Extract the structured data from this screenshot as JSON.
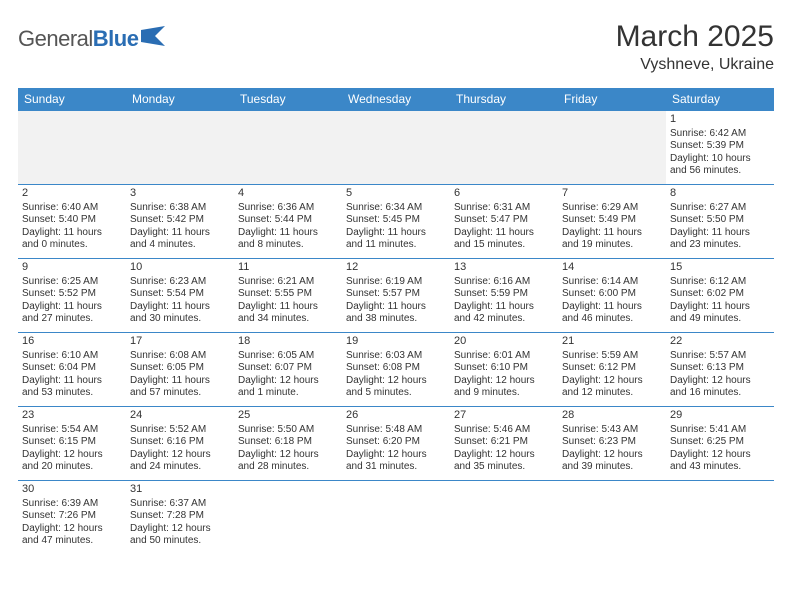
{
  "logo": {
    "part1": "General",
    "part2": "Blue"
  },
  "title": "March 2025",
  "location": "Vyshneve, Ukraine",
  "colors": {
    "header_bg": "#3b87c8",
    "header_text": "#ffffff",
    "border": "#3b87c8",
    "empty_bg": "#f2f2f2",
    "logo_gray": "#555555",
    "logo_blue": "#2a6db3"
  },
  "day_headers": [
    "Sunday",
    "Monday",
    "Tuesday",
    "Wednesday",
    "Thursday",
    "Friday",
    "Saturday"
  ],
  "weeks": [
    [
      null,
      null,
      null,
      null,
      null,
      null,
      {
        "n": "1",
        "sr": "Sunrise: 6:42 AM",
        "ss": "Sunset: 5:39 PM",
        "d1": "Daylight: 10 hours",
        "d2": "and 56 minutes."
      }
    ],
    [
      {
        "n": "2",
        "sr": "Sunrise: 6:40 AM",
        "ss": "Sunset: 5:40 PM",
        "d1": "Daylight: 11 hours",
        "d2": "and 0 minutes."
      },
      {
        "n": "3",
        "sr": "Sunrise: 6:38 AM",
        "ss": "Sunset: 5:42 PM",
        "d1": "Daylight: 11 hours",
        "d2": "and 4 minutes."
      },
      {
        "n": "4",
        "sr": "Sunrise: 6:36 AM",
        "ss": "Sunset: 5:44 PM",
        "d1": "Daylight: 11 hours",
        "d2": "and 8 minutes."
      },
      {
        "n": "5",
        "sr": "Sunrise: 6:34 AM",
        "ss": "Sunset: 5:45 PM",
        "d1": "Daylight: 11 hours",
        "d2": "and 11 minutes."
      },
      {
        "n": "6",
        "sr": "Sunrise: 6:31 AM",
        "ss": "Sunset: 5:47 PM",
        "d1": "Daylight: 11 hours",
        "d2": "and 15 minutes."
      },
      {
        "n": "7",
        "sr": "Sunrise: 6:29 AM",
        "ss": "Sunset: 5:49 PM",
        "d1": "Daylight: 11 hours",
        "d2": "and 19 minutes."
      },
      {
        "n": "8",
        "sr": "Sunrise: 6:27 AM",
        "ss": "Sunset: 5:50 PM",
        "d1": "Daylight: 11 hours",
        "d2": "and 23 minutes."
      }
    ],
    [
      {
        "n": "9",
        "sr": "Sunrise: 6:25 AM",
        "ss": "Sunset: 5:52 PM",
        "d1": "Daylight: 11 hours",
        "d2": "and 27 minutes."
      },
      {
        "n": "10",
        "sr": "Sunrise: 6:23 AM",
        "ss": "Sunset: 5:54 PM",
        "d1": "Daylight: 11 hours",
        "d2": "and 30 minutes."
      },
      {
        "n": "11",
        "sr": "Sunrise: 6:21 AM",
        "ss": "Sunset: 5:55 PM",
        "d1": "Daylight: 11 hours",
        "d2": "and 34 minutes."
      },
      {
        "n": "12",
        "sr": "Sunrise: 6:19 AM",
        "ss": "Sunset: 5:57 PM",
        "d1": "Daylight: 11 hours",
        "d2": "and 38 minutes."
      },
      {
        "n": "13",
        "sr": "Sunrise: 6:16 AM",
        "ss": "Sunset: 5:59 PM",
        "d1": "Daylight: 11 hours",
        "d2": "and 42 minutes."
      },
      {
        "n": "14",
        "sr": "Sunrise: 6:14 AM",
        "ss": "Sunset: 6:00 PM",
        "d1": "Daylight: 11 hours",
        "d2": "and 46 minutes."
      },
      {
        "n": "15",
        "sr": "Sunrise: 6:12 AM",
        "ss": "Sunset: 6:02 PM",
        "d1": "Daylight: 11 hours",
        "d2": "and 49 minutes."
      }
    ],
    [
      {
        "n": "16",
        "sr": "Sunrise: 6:10 AM",
        "ss": "Sunset: 6:04 PM",
        "d1": "Daylight: 11 hours",
        "d2": "and 53 minutes."
      },
      {
        "n": "17",
        "sr": "Sunrise: 6:08 AM",
        "ss": "Sunset: 6:05 PM",
        "d1": "Daylight: 11 hours",
        "d2": "and 57 minutes."
      },
      {
        "n": "18",
        "sr": "Sunrise: 6:05 AM",
        "ss": "Sunset: 6:07 PM",
        "d1": "Daylight: 12 hours",
        "d2": "and 1 minute."
      },
      {
        "n": "19",
        "sr": "Sunrise: 6:03 AM",
        "ss": "Sunset: 6:08 PM",
        "d1": "Daylight: 12 hours",
        "d2": "and 5 minutes."
      },
      {
        "n": "20",
        "sr": "Sunrise: 6:01 AM",
        "ss": "Sunset: 6:10 PM",
        "d1": "Daylight: 12 hours",
        "d2": "and 9 minutes."
      },
      {
        "n": "21",
        "sr": "Sunrise: 5:59 AM",
        "ss": "Sunset: 6:12 PM",
        "d1": "Daylight: 12 hours",
        "d2": "and 12 minutes."
      },
      {
        "n": "22",
        "sr": "Sunrise: 5:57 AM",
        "ss": "Sunset: 6:13 PM",
        "d1": "Daylight: 12 hours",
        "d2": "and 16 minutes."
      }
    ],
    [
      {
        "n": "23",
        "sr": "Sunrise: 5:54 AM",
        "ss": "Sunset: 6:15 PM",
        "d1": "Daylight: 12 hours",
        "d2": "and 20 minutes."
      },
      {
        "n": "24",
        "sr": "Sunrise: 5:52 AM",
        "ss": "Sunset: 6:16 PM",
        "d1": "Daylight: 12 hours",
        "d2": "and 24 minutes."
      },
      {
        "n": "25",
        "sr": "Sunrise: 5:50 AM",
        "ss": "Sunset: 6:18 PM",
        "d1": "Daylight: 12 hours",
        "d2": "and 28 minutes."
      },
      {
        "n": "26",
        "sr": "Sunrise: 5:48 AM",
        "ss": "Sunset: 6:20 PM",
        "d1": "Daylight: 12 hours",
        "d2": "and 31 minutes."
      },
      {
        "n": "27",
        "sr": "Sunrise: 5:46 AM",
        "ss": "Sunset: 6:21 PM",
        "d1": "Daylight: 12 hours",
        "d2": "and 35 minutes."
      },
      {
        "n": "28",
        "sr": "Sunrise: 5:43 AM",
        "ss": "Sunset: 6:23 PM",
        "d1": "Daylight: 12 hours",
        "d2": "and 39 minutes."
      },
      {
        "n": "29",
        "sr": "Sunrise: 5:41 AM",
        "ss": "Sunset: 6:25 PM",
        "d1": "Daylight: 12 hours",
        "d2": "and 43 minutes."
      }
    ],
    [
      {
        "n": "30",
        "sr": "Sunrise: 6:39 AM",
        "ss": "Sunset: 7:26 PM",
        "d1": "Daylight: 12 hours",
        "d2": "and 47 minutes."
      },
      {
        "n": "31",
        "sr": "Sunrise: 6:37 AM",
        "ss": "Sunset: 7:28 PM",
        "d1": "Daylight: 12 hours",
        "d2": "and 50 minutes."
      },
      null,
      null,
      null,
      null,
      null
    ]
  ]
}
